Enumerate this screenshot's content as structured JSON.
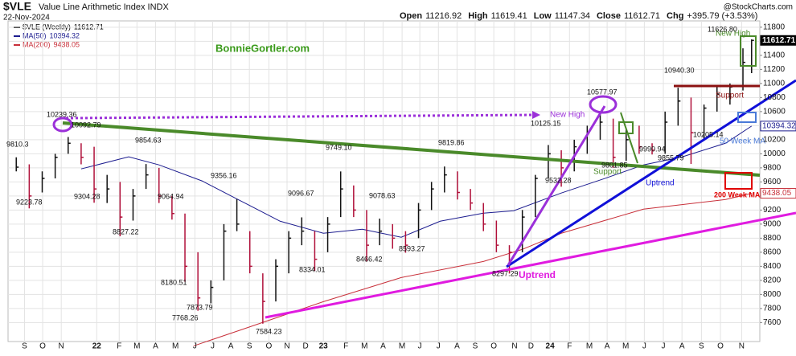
{
  "chart_data": {
    "type": "ohlc",
    "title": "$VLE",
    "subtitle": "Value Line Arithmetic Index INDX",
    "date": "22-Nov-2024",
    "source": "@StockCharts.com",
    "quote": [
      {
        "name": "Open",
        "value": 11216.92
      },
      {
        "name": "High",
        "value": 11619.41
      },
      {
        "name": "Low",
        "value": 11147.34
      },
      {
        "name": "Close",
        "value": 11612.71
      }
    ],
    "change": {
      "name": "Chg",
      "value": {
        "value": 395.79,
        "label": "+395.79"
      },
      "percent": {
        "value": 3.53,
        "label": "(+3.53%)"
      }
    },
    "up_color": "#111111",
    "down_color": "#b0103a",
    "x": [
      0,
      3,
      6,
      9,
      12,
      15,
      18,
      21,
      24,
      27,
      30,
      33,
      36,
      39,
      42,
      45,
      48,
      51,
      54,
      57,
      60,
      63,
      66,
      69,
      72,
      75,
      78,
      81,
      84,
      87,
      90,
      93,
      96,
      99,
      102,
      105,
      108,
      111,
      114,
      117,
      120,
      123,
      126,
      129,
      132,
      135,
      138,
      141,
      144,
      147,
      150,
      153,
      156,
      159,
      162,
      165,
      168,
      170
    ],
    "high": [
      9950,
      9850,
      9750,
      10000,
      10239,
      10150,
      10100,
      9700,
      9600,
      9500,
      9854,
      9800,
      9400,
      9150,
      8600,
      8200,
      9000,
      9356,
      8900,
      8300,
      8500,
      8900,
      9096,
      8900,
      9100,
      9749,
      9550,
      9200,
      9078,
      9000,
      8900,
      9300,
      9600,
      9819,
      9750,
      9500,
      9300,
      9050,
      8700,
      9200,
      9700,
      10125,
      10050,
      10200,
      10400,
      10578,
      10500,
      10350,
      10400,
      10150,
      10600,
      10940,
      10800,
      10700,
      10950,
      11000,
      11500,
      11626.8
    ],
    "low": [
      9750,
      9224,
      9450,
      9650,
      10000,
      9850,
      9304,
      9300,
      8827,
      9050,
      9500,
      9300,
      9064,
      8180,
      7768,
      7873,
      8200,
      8900,
      8300,
      7584,
      7900,
      8300,
      8700,
      8334,
      8600,
      9100,
      9100,
      8466,
      8700,
      8650,
      8593,
      8800,
      9200,
      9450,
      9350,
      9200,
      8900,
      8600,
      8297,
      8600,
      9100,
      9650,
      9532,
      9750,
      10000,
      10200,
      9801,
      9900,
      10000,
      9990,
      10000,
      10400,
      9855,
      10205,
      10600,
      10700,
      10900,
      11147
    ],
    "close": [
      9810,
      9400,
      9650,
      9950,
      10150,
      9950,
      9500,
      9500,
      9100,
      9400,
      9700,
      9400,
      9150,
      8400,
      7950,
      8100,
      8900,
      9000,
      8400,
      7900,
      8400,
      8800,
      8900,
      8500,
      9000,
      9500,
      9200,
      8700,
      8900,
      8800,
      8700,
      9200,
      9500,
      9700,
      9450,
      9300,
      9000,
      8700,
      8600,
      9100,
      9650,
      10000,
      9800,
      10100,
      10300,
      10450,
      9950,
      10200,
      10100,
      10050,
      10450,
      10750,
      10300,
      10650,
      10850,
      10950,
      11300,
      11612.71
    ],
    "series": [
      {
        "name": "$VLE (Weekly)",
        "last": 11612.71,
        "color": "#000000"
      },
      {
        "name": "MA(50)",
        "last": 10394.32,
        "color": "#1c1c8f",
        "x": [
          15,
          26,
          33,
          43,
          52,
          61,
          71,
          80,
          89,
          98,
          108,
          115,
          126,
          136,
          145,
          154,
          164,
          170
        ],
        "values": [
          9785,
          9957,
          9842,
          9613,
          9327,
          9041,
          8870,
          8927,
          8813,
          9041,
          9156,
          9190,
          9442,
          9648,
          9842,
          9957,
          10151,
          10394.32
        ]
      },
      {
        "name": "MA(200)",
        "last": 9438.05,
        "color": "#c8303a",
        "x": [
          41,
          52,
          71,
          89,
          108,
          117,
          126,
          145,
          164,
          170
        ],
        "values": [
          7268,
          7497,
          7897,
          8240,
          8469,
          8641,
          8870,
          9213,
          9350,
          9438.05
        ]
      }
    ],
    "price_labels": [
      10239.36,
      10092.79,
      9810.3,
      9223.78,
      9304.28,
      9854.63,
      8827.22,
      9064.94,
      8180.51,
      7873.79,
      7768.26,
      9356.16,
      7584.23,
      9096.67,
      8334.01,
      {
        "value": 9749.1,
        "label": "9749.10"
      },
      8466.42,
      9078.63,
      8593.27,
      9819.86,
      8297.29,
      10125.15,
      9532.28,
      10577.97,
      9801.85,
      9990.94,
      9855.79,
      {
        "value": 10940.3,
        "label": "10940.30"
      },
      10205.14,
      {
        "value": 11626.8,
        "label": "11626.80"
      }
    ],
    "annotations": {
      "site": "BonnieGortler.com",
      "new_high_1": "New High",
      "new_high_2": "New High",
      "support_1": "Support",
      "support_2": "Support",
      "uptrend_1": "Uptrend",
      "uptrend_2": "Uptrend",
      "ma50": "50 Week MA",
      "ma200": "200 Week MA"
    },
    "xlim": [
      -1.9,
      171.9
    ],
    "ylim": [
      7330,
      11890
    ],
    "yticks": [
      7600,
      7800,
      8000,
      8200,
      8400,
      8600,
      8800,
      9000,
      9200,
      9400,
      9600,
      9800,
      10000,
      10200,
      10400,
      10600,
      10800,
      11000,
      11200,
      11400,
      11600,
      11800
    ],
    "xticks": [
      {
        "value": 1.9,
        "label": "S"
      },
      {
        "value": 6.1,
        "label": "O"
      },
      {
        "value": 10.4,
        "label": "N"
      },
      {
        "value": 18.6,
        "label": "22"
      },
      {
        "value": 23.8,
        "label": "F"
      },
      {
        "value": 27.9,
        "label": "M"
      },
      {
        "value": 32.2,
        "label": "A"
      },
      {
        "value": 36.8,
        "label": "M"
      },
      {
        "value": 41.3,
        "label": "J"
      },
      {
        "value": 45.4,
        "label": "J"
      },
      {
        "value": 49.6,
        "label": "A"
      },
      {
        "value": 53.9,
        "label": "S"
      },
      {
        "value": 58.4,
        "label": "O"
      },
      {
        "value": 62.6,
        "label": "N"
      },
      {
        "value": 66.9,
        "label": "D"
      },
      {
        "value": 71,
        "label": "23"
      },
      {
        "value": 76.2,
        "label": "F"
      },
      {
        "value": 80.5,
        "label": "M"
      },
      {
        "value": 84.8,
        "label": "A"
      },
      {
        "value": 89.2,
        "label": "M"
      },
      {
        "value": 93.3,
        "label": "J"
      },
      {
        "value": 97.6,
        "label": "J"
      },
      {
        "value": 101.9,
        "label": "A"
      },
      {
        "value": 106.1,
        "label": "S"
      },
      {
        "value": 110.4,
        "label": "O"
      },
      {
        "value": 115.2,
        "label": "N"
      },
      {
        "value": 119,
        "label": "D"
      },
      {
        "value": 123.4,
        "label": "24"
      },
      {
        "value": 127.9,
        "label": "F"
      },
      {
        "value": 132.5,
        "label": "M"
      },
      {
        "value": 136.6,
        "label": "A"
      },
      {
        "value": 140.9,
        "label": "M"
      },
      {
        "value": 145.2,
        "label": "J"
      },
      {
        "value": 149.6,
        "label": "J"
      },
      {
        "value": 153.9,
        "label": "A"
      },
      {
        "value": 158.4,
        "label": "S"
      },
      {
        "value": 162.8,
        "label": "O"
      },
      {
        "value": 167.7,
        "label": "N"
      }
    ],
    "grid": true
  }
}
